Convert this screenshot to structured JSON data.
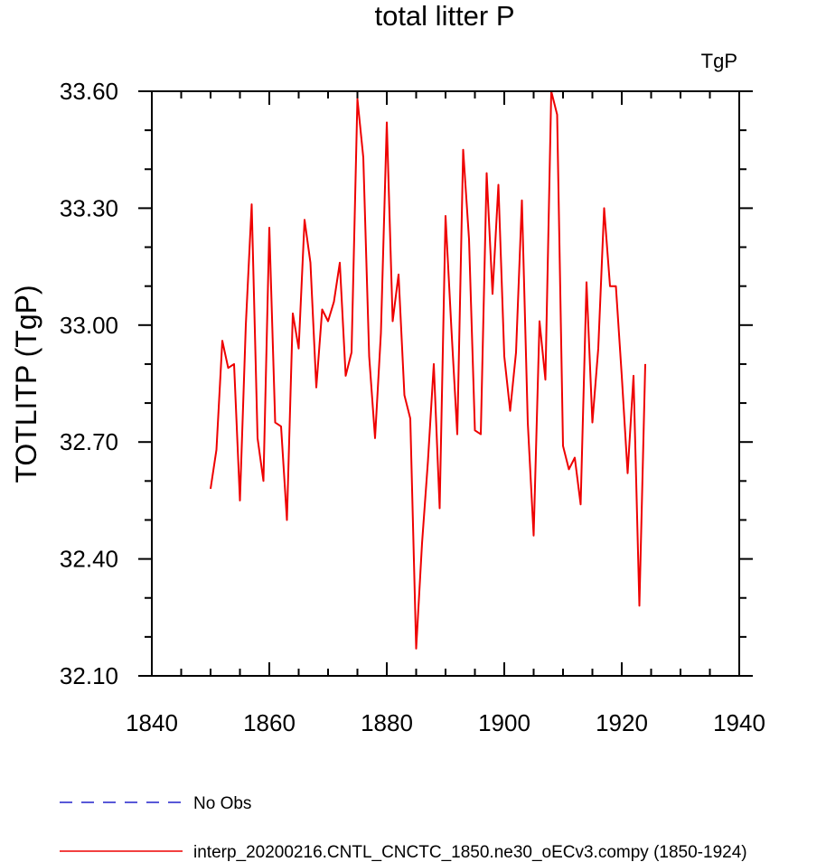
{
  "chart_data": {
    "type": "line",
    "title": "total litter P",
    "units_label": "TgP",
    "ylabel": "TOTLITP  (TgP)",
    "xlabel": "",
    "xlim": [
      1840,
      1940
    ],
    "ylim": [
      32.1,
      33.6
    ],
    "x_ticks": [
      1840,
      1860,
      1880,
      1900,
      1920,
      1940
    ],
    "x_tick_labels": [
      "1840",
      "1860",
      "1880",
      "1900",
      "1920",
      "1940"
    ],
    "y_ticks": [
      32.1,
      32.4,
      32.7,
      33.0,
      33.3,
      33.6
    ],
    "y_tick_labels": [
      "32.10",
      "32.40",
      "32.70",
      "33.00",
      "33.30",
      "33.60"
    ],
    "grid": false,
    "legend_position": "bottom-left",
    "series": [
      {
        "name": "No Obs",
        "color": "#2222cc",
        "dash": "dashed",
        "x": [],
        "y": []
      },
      {
        "name": "interp_20200216.CNTL_CNCTC_1850.ne30_oECv3.compy (1850-1924)",
        "color": "#ee0000",
        "dash": "solid",
        "x": [
          1850,
          1851,
          1852,
          1853,
          1854,
          1855,
          1856,
          1857,
          1858,
          1859,
          1860,
          1861,
          1862,
          1863,
          1864,
          1865,
          1866,
          1867,
          1868,
          1869,
          1870,
          1871,
          1872,
          1873,
          1874,
          1875,
          1876,
          1877,
          1878,
          1879,
          1880,
          1881,
          1882,
          1883,
          1884,
          1885,
          1886,
          1887,
          1888,
          1889,
          1890,
          1891,
          1892,
          1893,
          1894,
          1895,
          1896,
          1897,
          1898,
          1899,
          1900,
          1901,
          1902,
          1903,
          1904,
          1905,
          1906,
          1907,
          1908,
          1909,
          1910,
          1911,
          1912,
          1913,
          1914,
          1915,
          1916,
          1917,
          1918,
          1919,
          1920,
          1921,
          1922,
          1923,
          1924
        ],
        "y": [
          32.58,
          32.68,
          32.96,
          32.89,
          32.9,
          32.55,
          33.0,
          33.31,
          32.71,
          32.6,
          33.25,
          32.75,
          32.74,
          32.5,
          33.03,
          32.94,
          33.27,
          33.16,
          32.84,
          33.04,
          33.01,
          33.06,
          33.16,
          32.87,
          32.93,
          33.58,
          33.43,
          32.92,
          32.71,
          32.98,
          33.52,
          33.01,
          33.13,
          32.82,
          32.76,
          32.17,
          32.44,
          32.65,
          32.9,
          32.53,
          33.28,
          32.99,
          32.72,
          33.45,
          33.22,
          32.73,
          32.72,
          33.39,
          33.08,
          33.36,
          32.92,
          32.78,
          32.93,
          33.32,
          32.75,
          32.46,
          33.01,
          32.86,
          33.6,
          33.54,
          32.69,
          32.63,
          32.66,
          32.54,
          33.11,
          32.75,
          32.94,
          33.3,
          33.1,
          33.1,
          32.87,
          32.62,
          32.87,
          32.28,
          32.9
        ]
      }
    ]
  }
}
